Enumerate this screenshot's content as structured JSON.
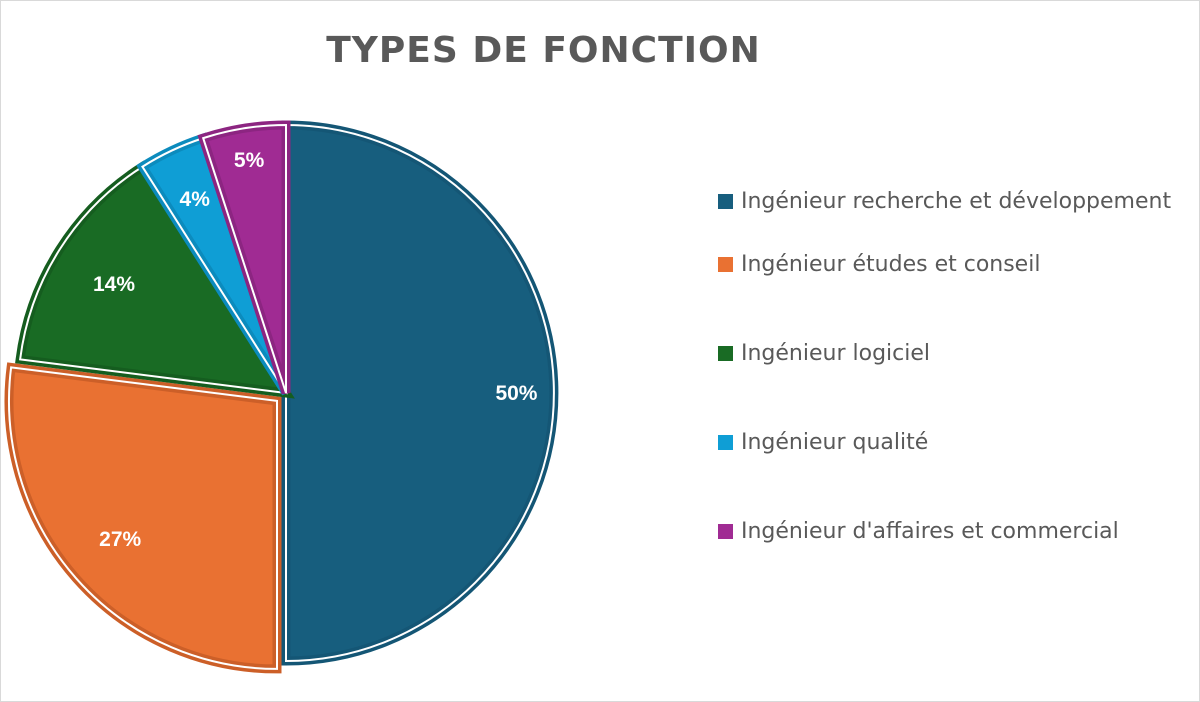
{
  "chart_data": {
    "type": "pie",
    "title": "TYPES DE FONCTION",
    "legend_position": "right",
    "slices": [
      {
        "name": "Ingénieur recherche et développement",
        "value": 50,
        "label": "50%",
        "color": "#175e7e",
        "border": "#145675"
      },
      {
        "name": "Ingénieur études et conseil",
        "value": 27,
        "label": "27%",
        "color": "#e97132",
        "border": "#cc5f28",
        "exploded": true
      },
      {
        "name": "Ingénieur logiciel",
        "value": 14,
        "label": "14%",
        "color": "#196b24",
        "border": "#155d1f"
      },
      {
        "name": "Ingénieur qualité",
        "value": 4,
        "label": "4%",
        "color": "#0f9ed5",
        "border": "#0c8bbd"
      },
      {
        "name": "Ingénieur d'affaires et commercial",
        "value": 5,
        "label": "5%",
        "color": "#a02b93",
        "border": "#8c2581"
      }
    ]
  }
}
